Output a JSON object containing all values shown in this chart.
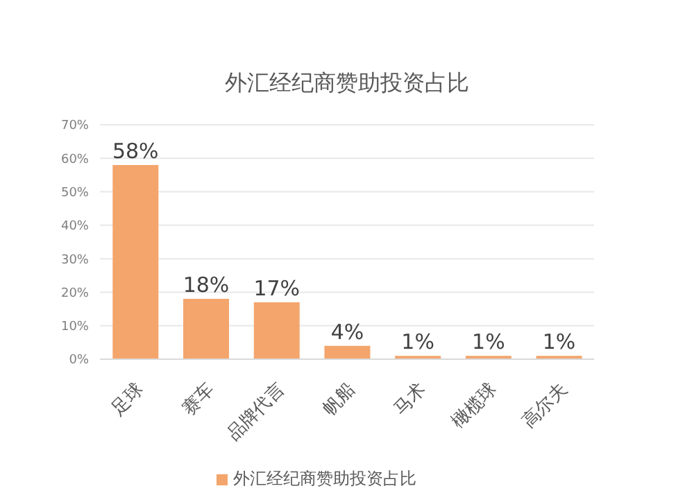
{
  "chart_data": {
    "type": "bar",
    "title": "外汇经纪商赞助投资占比",
    "categories": [
      "足球",
      "赛车",
      "品牌代言",
      "帆船",
      "马术",
      "橄榄球",
      "高尔夫"
    ],
    "series": [
      {
        "name": "外汇经纪商赞助投资占比",
        "color": "#f4a56c",
        "values": [
          58,
          18,
          17,
          4,
          1,
          1,
          1
        ]
      }
    ],
    "value_labels": [
      "58%",
      "18%",
      "17%",
      "4%",
      "1%",
      "1%",
      "1%"
    ],
    "ylim": [
      0,
      70
    ],
    "yticks": [
      {
        "value": 0,
        "label": "0%"
      },
      {
        "value": 10,
        "label": "10%"
      },
      {
        "value": 20,
        "label": "20%"
      },
      {
        "value": 30,
        "label": "30%"
      },
      {
        "value": 40,
        "label": "40%"
      },
      {
        "value": 50,
        "label": "50%"
      },
      {
        "value": 60,
        "label": "60%"
      },
      {
        "value": 70,
        "label": "70%"
      }
    ],
    "grid": "y",
    "legend": "bottom"
  }
}
